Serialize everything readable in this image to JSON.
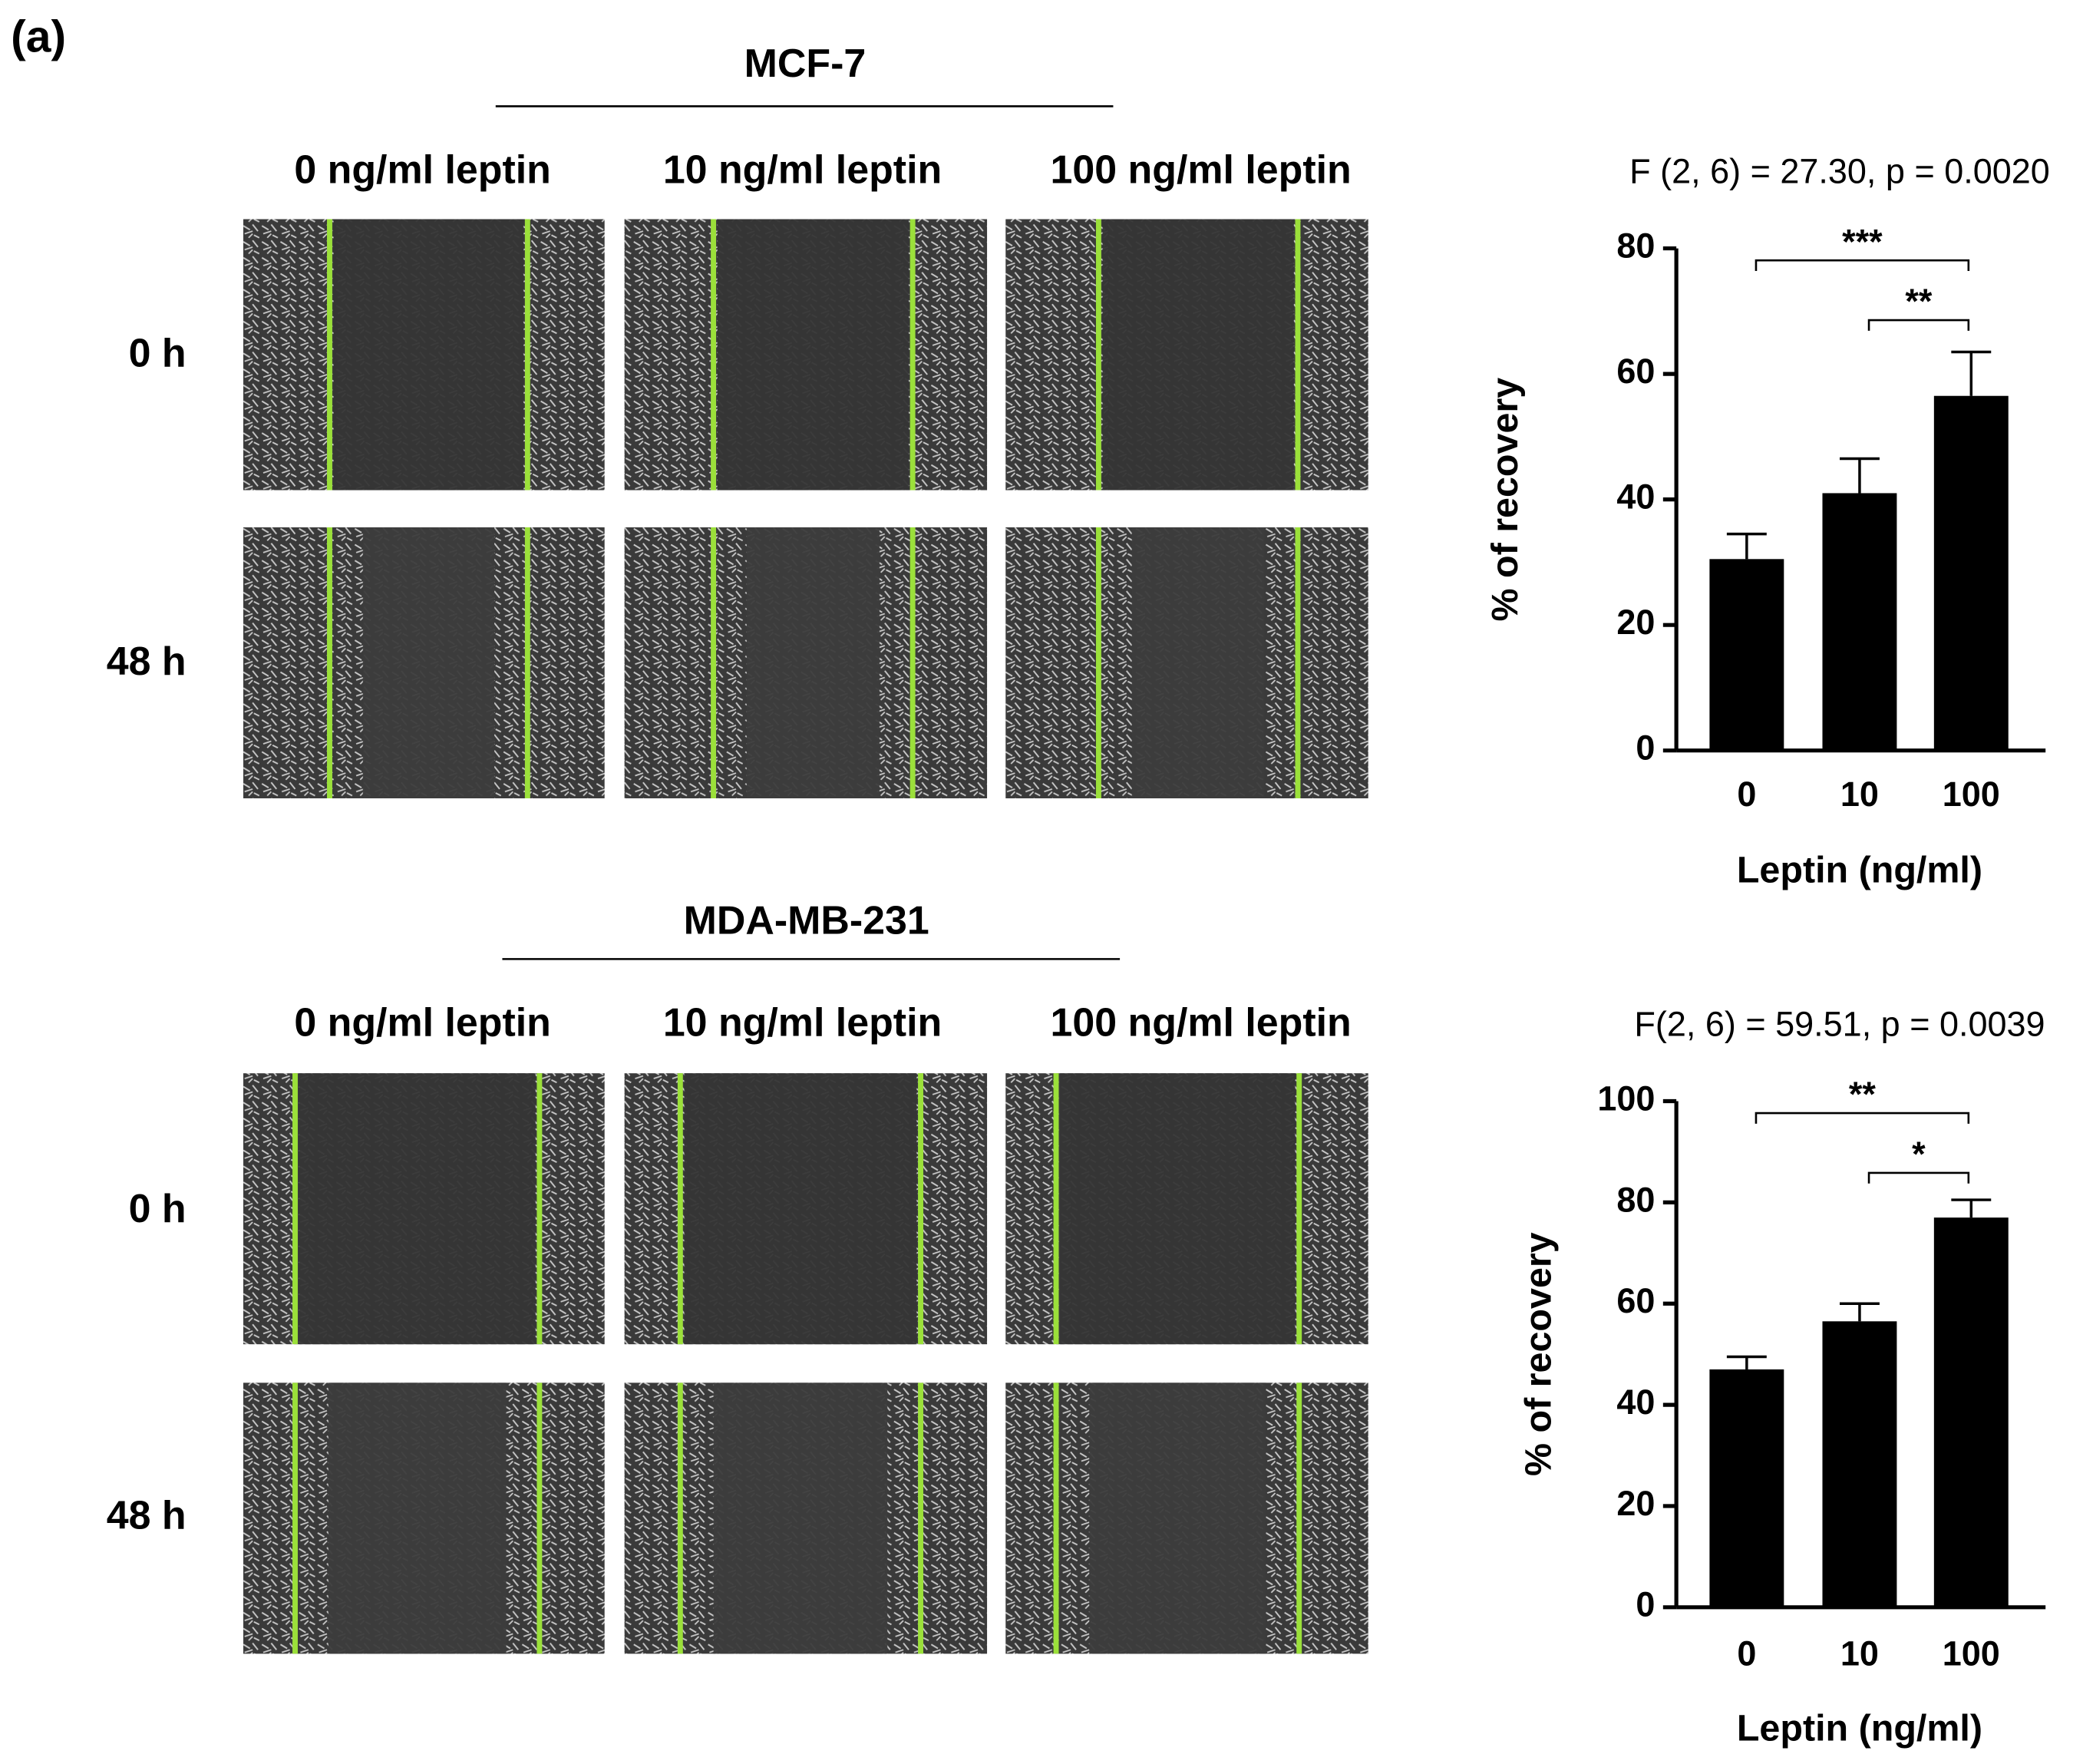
{
  "panel_label": "(a)",
  "blocks": [
    {
      "title": "MCF-7",
      "columns": [
        "0 ng/ml leptin",
        "10 ng/ml leptin",
        "100 ng/ml leptin"
      ],
      "rows": [
        "0 h",
        "48 h"
      ]
    },
    {
      "title": "MDA-MB-231",
      "columns": [
        "0 ng/ml leptin",
        "10 ng/ml leptin",
        "100 ng/ml leptin"
      ],
      "rows": [
        "0 h",
        "48 h"
      ]
    }
  ],
  "chart_data": [
    {
      "type": "bar",
      "title": "F (2, 6) = 27.30, p = 0.0020",
      "y_label": "% of recovery",
      "x_label": "Leptin (ng/ml)",
      "categories": [
        "0",
        "10",
        "100"
      ],
      "values": [
        30.5,
        41,
        56.5
      ],
      "errors": [
        4,
        5.5,
        7
      ],
      "color": "#000000",
      "ylim": [
        0,
        80
      ],
      "yticks": [
        0,
        20,
        40,
        60,
        80
      ],
      "annotations": [
        {
          "text": "***",
          "between": [
            "0",
            "100"
          ]
        },
        {
          "text": "**",
          "between": [
            "10",
            "100"
          ]
        }
      ]
    },
    {
      "type": "bar",
      "title": "F(2, 6) = 59.51, p = 0.0039",
      "y_label": "% of recovery",
      "x_label": "Leptin (ng/ml)",
      "categories": [
        "0",
        "10",
        "100"
      ],
      "values": [
        47,
        56.5,
        77
      ],
      "errors": [
        2.5,
        3.5,
        3.5
      ],
      "color": "#000000",
      "ylim": [
        0,
        100
      ],
      "yticks": [
        0,
        20,
        40,
        60,
        80,
        100
      ],
      "annotations": [
        {
          "text": "**",
          "between": [
            "0",
            "100"
          ]
        },
        {
          "text": "*",
          "between": [
            "10",
            "100"
          ]
        }
      ]
    }
  ]
}
